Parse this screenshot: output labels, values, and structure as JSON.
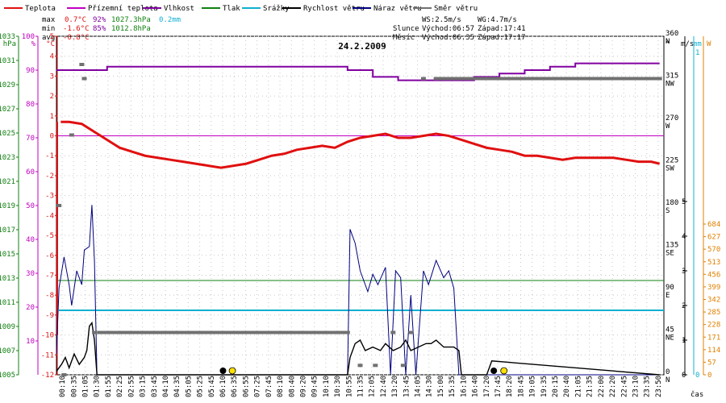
{
  "chart_data": {
    "type": "line",
    "title": "24.2.2009",
    "xlabel": "čas",
    "legend": [
      {
        "label": "Teplota",
        "color": "#e01010"
      },
      {
        "label": "Přízemní teplota",
        "color": "#c000c0"
      },
      {
        "label": "Vlhkost",
        "color": "#8000a0"
      },
      {
        "label": "Tlak",
        "color": "#108010"
      },
      {
        "label": "Srážky",
        "color": "#10b0d0"
      },
      {
        "label": "Rychlost větru",
        "color": "#000000"
      },
      {
        "label": "Náraz větru",
        "color": "#000080"
      },
      {
        "label": "Směr větru",
        "color": "#707070"
      }
    ],
    "stats": {
      "max": {
        "label": "max",
        "temp": "0.7°C",
        "hum": "92%",
        "press": "1027.3hPa",
        "rain": "0.2mm"
      },
      "min": {
        "label": "min",
        "temp": "-1.6°C",
        "hum": "85%",
        "press": "1012.8hPa"
      },
      "avg": {
        "label": "avg",
        "temp": "-0.8°C"
      }
    },
    "wind_stats": {
      "ws": "WS:2.5m/s",
      "wg": "WG:4.7m/s"
    },
    "sun": {
      "label": "Slunce",
      "rise": "Východ:06:57",
      "set": "Západ:17:41"
    },
    "moon": {
      "label": "Měsíc",
      "rise": "Východ:06:35",
      "set": "Západ:17:17"
    },
    "axes": {
      "hpa": {
        "unit": "hPa",
        "ticks": [
          "1005",
          "1007",
          "1009",
          "1011",
          "1013",
          "1015",
          "1017",
          "1019",
          "1021",
          "1023",
          "1025",
          "1027",
          "1029",
          "1031",
          "1033"
        ],
        "range": [
          1005,
          1033
        ]
      },
      "humidity": {
        "unit": "%",
        "ticks": [
          "10",
          "20",
          "30",
          "40",
          "50",
          "60",
          "70",
          "80",
          "90",
          "100"
        ],
        "range": [
          0,
          100
        ]
      },
      "temp": {
        "unit": "°C",
        "ticks": [
          "-12",
          "-11",
          "-10",
          "-9",
          "-8",
          "-7",
          "-6",
          "-5",
          "-4",
          "-3",
          "-2",
          "-1",
          "0",
          "1",
          "2",
          "3",
          "4",
          "5"
        ],
        "range": [
          -12,
          5
        ]
      },
      "direction": {
        "unit": "°",
        "ticks": [
          {
            "deg": "0",
            "dir": "N"
          },
          {
            "deg": "45",
            "dir": "NE"
          },
          {
            "deg": "90",
            "dir": "E"
          },
          {
            "deg": "135",
            "dir": "SE"
          },
          {
            "deg": "180",
            "dir": "S"
          },
          {
            "deg": "225",
            "dir": "SW"
          },
          {
            "deg": "270",
            "dir": "W"
          },
          {
            "deg": "315",
            "dir": "NW"
          },
          {
            "deg": "360",
            "dir": "N"
          }
        ],
        "range": [
          0,
          360
        ]
      },
      "wind": {
        "unit": "m/s",
        "ticks": [
          "0",
          "1",
          "2",
          "3",
          "4",
          "5"
        ],
        "range": [
          0,
          5
        ]
      },
      "rain": {
        "unit": "mm",
        "ticks": [
          "0",
          "1"
        ],
        "range": [
          0,
          1
        ]
      },
      "solar": {
        "unit": "W",
        "ticks": [
          "0",
          "57",
          "114",
          "171",
          "228",
          "285",
          "342",
          "399",
          "456",
          "513",
          "570",
          "627",
          "684"
        ],
        "range": [
          0,
          684
        ]
      }
    },
    "time_labels": [
      "00:10",
      "00:35",
      "01:05",
      "01:30",
      "01:55",
      "02:25",
      "02:55",
      "03:15",
      "03:45",
      "04:10",
      "04:35",
      "05:05",
      "05:25",
      "05:45",
      "06:10",
      "06:35",
      "06:55",
      "07:25",
      "07:45",
      "08:10",
      "08:40",
      "09:20",
      "09:45",
      "10:10",
      "10:30",
      "10:55",
      "11:35",
      "12:05",
      "12:40",
      "13:20",
      "13:45",
      "14:05",
      "14:30",
      "15:00",
      "15:35",
      "16:10",
      "16:40",
      "17:20",
      "17:45",
      "18:20",
      "18:45",
      "19:05",
      "19:35",
      "20:15",
      "20:40",
      "21:05",
      "21:35",
      "22:00",
      "22:20",
      "22:45",
      "23:10",
      "23:35",
      "23:50"
    ],
    "temperature": {
      "x": [
        0.17,
        0.5,
        1.0,
        1.5,
        2.0,
        2.5,
        3.0,
        3.5,
        4.0,
        4.5,
        5.0,
        5.5,
        6.0,
        6.5,
        7.0,
        7.5,
        8.0,
        8.5,
        9.0,
        9.5,
        10.0,
        10.5,
        11.0,
        11.5,
        12.0,
        12.5,
        13.0,
        13.5,
        14.0,
        14.5,
        15.0,
        15.5,
        16.0,
        16.5,
        17.0,
        17.5,
        18.0,
        18.5,
        19.0,
        19.5,
        20.0,
        20.5,
        21.0,
        21.5,
        22.0,
        22.5,
        23.0,
        23.5,
        23.83
      ],
      "y": [
        0.7,
        0.7,
        0.6,
        0.2,
        -0.2,
        -0.6,
        -0.8,
        -1.0,
        -1.1,
        -1.2,
        -1.3,
        -1.4,
        -1.5,
        -1.6,
        -1.5,
        -1.4,
        -1.2,
        -1.0,
        -0.9,
        -0.7,
        -0.6,
        -0.5,
        -0.6,
        -0.3,
        -0.1,
        0.0,
        0.1,
        -0.1,
        -0.1,
        0.0,
        0.1,
        0.0,
        -0.2,
        -0.4,
        -0.6,
        -0.7,
        -0.8,
        -1.0,
        -1.0,
        -1.1,
        -1.2,
        -1.1,
        -1.1,
        -1.1,
        -1.1,
        -1.2,
        -1.3,
        -1.3,
        -1.4
      ]
    },
    "ground_temperature": {
      "y": 0.0
    },
    "humidity": {
      "x": [
        0.0,
        2.0,
        5.0,
        8.0,
        10.5,
        11.5,
        12.5,
        13.5,
        14.5,
        15.5,
        16.5,
        17.5,
        18.5,
        19.5,
        20.5,
        23.83
      ],
      "y": [
        90,
        91,
        91,
        91,
        91,
        90,
        88,
        87,
        87,
        87,
        88,
        89,
        90,
        91,
        92,
        92
      ]
    },
    "pressure": {
      "y": 1012.8
    },
    "precipitation": {
      "y": 0.2
    },
    "wind_speed": {
      "x": [
        0.0,
        0.2,
        0.35,
        0.5,
        0.7,
        0.9,
        1.1,
        1.2,
        1.3,
        1.4,
        1.5,
        1.6,
        11.5,
        11.6,
        11.8,
        12.0,
        12.2,
        12.5,
        12.8,
        13.0,
        13.3,
        13.6,
        13.8,
        14.0,
        14.3,
        14.6,
        14.8,
        15.0,
        15.3,
        15.5,
        15.7,
        15.9,
        16.0,
        17.0,
        17.2,
        23.83
      ],
      "y": [
        0.1,
        0.3,
        0.5,
        0.2,
        0.6,
        0.3,
        0.5,
        0.7,
        1.4,
        1.5,
        1.0,
        0.0,
        0.0,
        0.5,
        0.9,
        1.0,
        0.7,
        0.8,
        0.7,
        0.9,
        0.7,
        0.8,
        1.0,
        0.7,
        0.8,
        0.9,
        0.9,
        1.0,
        0.8,
        0.8,
        0.8,
        0.7,
        0.0,
        0.0,
        0.4,
        0.0
      ]
    },
    "wind_gust": {
      "x": [
        0.0,
        0.1,
        0.3,
        0.5,
        0.6,
        0.8,
        1.0,
        1.1,
        1.3,
        1.4,
        1.5,
        1.6,
        11.5,
        11.6,
        11.8,
        12.0,
        12.3,
        12.5,
        12.7,
        13.0,
        13.2,
        13.4,
        13.6,
        13.8,
        14.0,
        14.2,
        14.5,
        14.7,
        15.0,
        15.3,
        15.5,
        15.7,
        15.9,
        16.0,
        23.83
      ],
      "y": [
        0.6,
        2.5,
        3.4,
        2.6,
        2.0,
        3.0,
        2.6,
        3.6,
        3.7,
        4.9,
        3.3,
        0.0,
        0.0,
        4.2,
        3.8,
        3.0,
        2.4,
        2.9,
        2.6,
        3.1,
        0.0,
        3.0,
        2.8,
        0.0,
        2.3,
        0.0,
        3.0,
        2.6,
        3.3,
        2.8,
        3.0,
        2.5,
        0.0,
        0.0,
        0.0
      ]
    },
    "wind_direction": {
      "x": [
        0.1,
        0.3,
        0.6,
        1.0,
        1.1,
        1.5,
        11.5,
        12.0,
        12.6,
        13.3,
        13.7,
        14.0,
        14.5,
        15.0,
        15.5,
        16.0,
        16.5,
        17.0,
        18.0,
        19.0,
        20.0,
        21.0,
        22.0,
        23.0,
        23.83
      ],
      "y": [
        180,
        0,
        255,
        330,
        315,
        45,
        45,
        10,
        10,
        45,
        10,
        45,
        315,
        315,
        315,
        315,
        315,
        315,
        315,
        315,
        315,
        315,
        315,
        315,
        315
      ]
    }
  }
}
